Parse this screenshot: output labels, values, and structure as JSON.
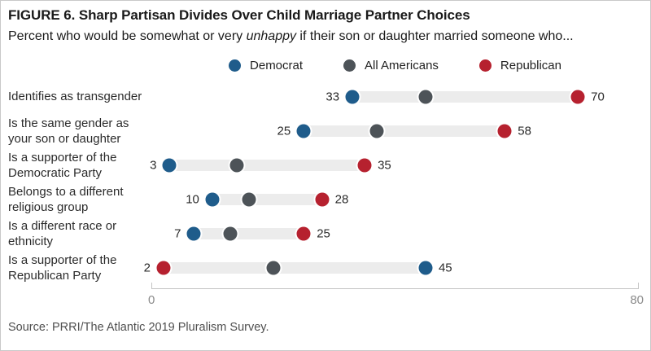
{
  "header": {
    "title": "FIGURE 6. Sharp Partisan Divides Over Child Marriage Partner Choices",
    "subtitle_pre": "Percent who would be somewhat or very ",
    "subtitle_italic": "unhappy",
    "subtitle_post": " if their son or daughter married someone who..."
  },
  "legend": [
    {
      "key": "democrat",
      "label": "Democrat",
      "color": "#1f5c8b"
    },
    {
      "key": "all",
      "label": "All Americans",
      "color": "#4d5358"
    },
    {
      "key": "republican",
      "label": "Republican",
      "color": "#b6212f"
    }
  ],
  "chart_data": {
    "type": "dumbbell-dot",
    "xlim": [
      0,
      80
    ],
    "x_ticks": [
      0,
      80
    ],
    "x_tick_labels": [
      "0",
      "80"
    ],
    "grid": false,
    "legend_position": "top-center",
    "categories": [
      "Identifies as transgender",
      "Is the same gender as your son or daughter",
      "Is a supporter of the Democratic Party",
      "Belongs to a different religious group",
      "Is a different race or ethnicity",
      "Is a supporter of the Republican Party"
    ],
    "series": [
      {
        "name": "Democrat",
        "values": [
          33,
          25,
          3,
          10,
          7,
          45
        ]
      },
      {
        "name": "All Americans",
        "values": [
          45,
          37,
          14,
          16,
          13,
          20
        ]
      },
      {
        "name": "Republican",
        "values": [
          70,
          58,
          35,
          28,
          25,
          2
        ]
      }
    ],
    "rows": [
      {
        "label_lines": [
          "Identifies as transgender"
        ],
        "democrat": 33,
        "all": 45,
        "republican": 70,
        "left_label": "33",
        "right_label": "70"
      },
      {
        "label_lines": [
          "Is the same gender as",
          "your son or daughter"
        ],
        "democrat": 25,
        "all": 37,
        "republican": 58,
        "left_label": "25",
        "right_label": "58"
      },
      {
        "label_lines": [
          "Is a supporter of the",
          "Democratic Party"
        ],
        "democrat": 3,
        "all": 14,
        "republican": 35,
        "left_label": "3",
        "right_label": "35"
      },
      {
        "label_lines": [
          "Belongs to a different",
          "religious group"
        ],
        "democrat": 10,
        "all": 16,
        "republican": 28,
        "left_label": "10",
        "right_label": "28"
      },
      {
        "label_lines": [
          "Is a different race or",
          "ethnicity"
        ],
        "democrat": 7,
        "all": 13,
        "republican": 25,
        "left_label": "7",
        "right_label": "25"
      },
      {
        "label_lines": [
          "Is a supporter of the",
          "Republican Party"
        ],
        "democrat": 45,
        "all": 20,
        "republican": 2,
        "left_label": "2",
        "right_label": "45"
      }
    ]
  },
  "colors": {
    "democrat": "#1f5c8b",
    "all_americans": "#4d5358",
    "republican": "#b6212f",
    "track": "#ececec",
    "axis": "#c4c4c4"
  },
  "footer": {
    "source": "Source: PRRI/The Atlantic 2019 Pluralism Survey."
  }
}
